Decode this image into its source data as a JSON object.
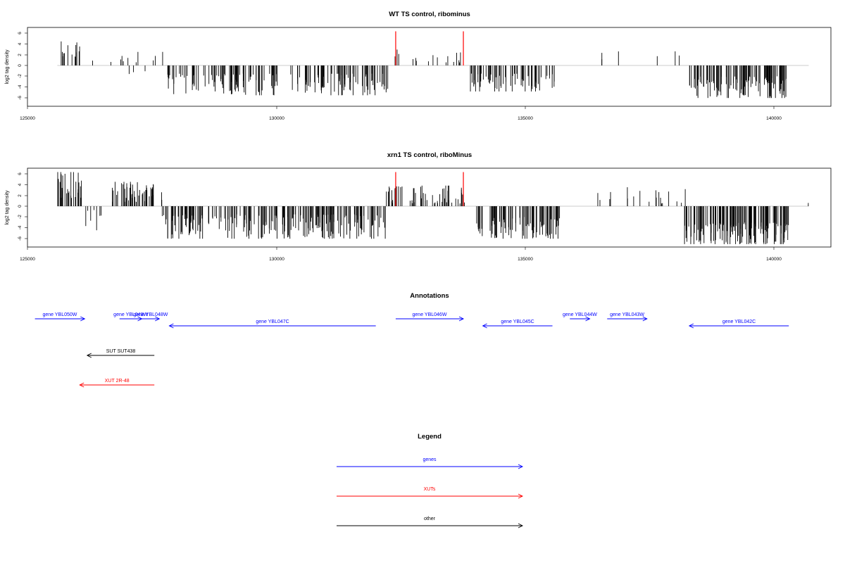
{
  "panels": [
    {
      "title": "WT TS control, ribominus",
      "ylabel": "log2 tag density",
      "xlim": [
        125000,
        141000
      ],
      "ylim": [
        -7,
        7
      ],
      "yticks": [
        "-6",
        "-4",
        "-2",
        "0",
        "2",
        "4",
        "6"
      ],
      "xticks": [
        "125000",
        "130000",
        "135000",
        "140000"
      ]
    },
    {
      "title": "xrn1 TS control, riboMinus",
      "ylabel": "log2 tag density",
      "xlim": [
        125000,
        141000
      ],
      "ylim": [
        -7,
        7
      ],
      "yticks": [
        "-6",
        "-4",
        "-2",
        "0",
        "2",
        "4",
        "6"
      ],
      "xticks": [
        "125000",
        "130000",
        "135000",
        "140000"
      ]
    }
  ],
  "annotations_title": "Annotations",
  "legend_title": "Legend",
  "colors": {
    "genes": "#0000ff",
    "XUTs": "#ff0000",
    "other": "#000000",
    "marker": "#ff0000",
    "baseline": "#bebebe"
  },
  "chart_data": [
    {
      "type": "bar",
      "title": "WT TS control, ribominus",
      "ylabel": "log2 tag density",
      "xlim": [
        125000,
        141000
      ],
      "ylim": [
        -7,
        7
      ],
      "baseline_range": [
        125600,
        140700
      ],
      "markers": [
        {
          "x": 132400,
          "y": 6.3
        },
        {
          "x": 133760,
          "y": 6.3
        }
      ],
      "regions": [
        {
          "x": [
            125600,
            126050
          ],
          "sign": 1,
          "min": 1.2,
          "max": 5.0,
          "density": 0.15
        },
        {
          "x": [
            126300,
            127800
          ],
          "sign": 1,
          "min": 0.5,
          "max": 2.5,
          "density": 0.035
        },
        {
          "x": [
            126600,
            127400
          ],
          "sign": -1,
          "min": 0.8,
          "max": 3.0,
          "density": 0.02
        },
        {
          "x": [
            127800,
            132250
          ],
          "sign": -1,
          "min": 1.5,
          "max": 5.5,
          "density": 0.2
        },
        {
          "x": [
            132250,
            133800
          ],
          "sign": 1,
          "min": 0.5,
          "max": 3.2,
          "density": 0.05
        },
        {
          "x": [
            133900,
            135700
          ],
          "sign": -1,
          "min": 1.5,
          "max": 4.8,
          "density": 0.2
        },
        {
          "x": [
            136400,
            138300
          ],
          "sign": 1,
          "min": 0.8,
          "max": 2.6,
          "density": 0.015
        },
        {
          "x": [
            138300,
            140300
          ],
          "sign": -1,
          "min": 2.0,
          "max": 6.0,
          "density": 0.28
        }
      ]
    },
    {
      "type": "bar",
      "title": "xrn1 TS control, riboMinus",
      "ylabel": "log2 tag density",
      "xlim": [
        125000,
        141000
      ],
      "ylim": [
        -7,
        7
      ],
      "baseline_range": [
        125600,
        140700
      ],
      "markers": [
        {
          "x": 132400,
          "y": 6.3
        },
        {
          "x": 133760,
          "y": 6.3
        }
      ],
      "regions": [
        {
          "x": [
            125600,
            126100
          ],
          "sign": 1,
          "min": 1.5,
          "max": 6.3,
          "density": 0.3
        },
        {
          "x": [
            126100,
            126700
          ],
          "sign": -1,
          "min": 0.5,
          "max": 4.5,
          "density": 0.06
        },
        {
          "x": [
            126700,
            127700
          ],
          "sign": 1,
          "min": 0.8,
          "max": 4.5,
          "density": 0.25
        },
        {
          "x": [
            127700,
            132200
          ],
          "sign": -1,
          "min": 1.5,
          "max": 6.0,
          "density": 0.25
        },
        {
          "x": [
            132200,
            133800
          ],
          "sign": 1,
          "min": 0.5,
          "max": 3.8,
          "density": 0.18
        },
        {
          "x": [
            133900,
            135700
          ],
          "sign": -1,
          "min": 2.0,
          "max": 6.0,
          "density": 0.25
        },
        {
          "x": [
            136400,
            138300
          ],
          "sign": 1,
          "min": 0.5,
          "max": 3.5,
          "density": 0.05
        },
        {
          "x": [
            138200,
            140300
          ],
          "sign": -1,
          "min": 3.0,
          "max": 7.0,
          "density": 0.35
        },
        {
          "x": [
            140600,
            140700
          ],
          "sign": 1,
          "min": 0.5,
          "max": 1.2,
          "density": 0.02
        }
      ]
    }
  ],
  "features": [
    {
      "label": "gene YBL050W",
      "start": 125150,
      "end": 126150,
      "strand": "+",
      "kind": "gene",
      "row": 0
    },
    {
      "label": "gene YBL049W",
      "start": 126850,
      "end": 127300,
      "strand": "+",
      "kind": "gene",
      "row": 0
    },
    {
      "label": "gene YBL048W",
      "start": 127300,
      "end": 127650,
      "strand": "+",
      "kind": "gene",
      "row": 0
    },
    {
      "label": "gene YBL047C",
      "start": 127850,
      "end": 132000,
      "strand": "-",
      "kind": "gene",
      "row": 1
    },
    {
      "label": "gene YBL046W",
      "start": 132400,
      "end": 133760,
      "strand": "+",
      "kind": "gene",
      "row": 0
    },
    {
      "label": "gene YBL045C",
      "start": 134150,
      "end": 135550,
      "strand": "-",
      "kind": "gene",
      "row": 1
    },
    {
      "label": "gene YBL044W",
      "start": 135900,
      "end": 136300,
      "strand": "+",
      "kind": "gene",
      "row": 0
    },
    {
      "label": "gene YBL043W",
      "start": 136650,
      "end": 137450,
      "strand": "+",
      "kind": "gene",
      "row": 0
    },
    {
      "label": "gene YBL042C",
      "start": 138300,
      "end": 140300,
      "strand": "-",
      "kind": "gene",
      "row": 1
    },
    {
      "label": "SUT SUT438",
      "start": 126200,
      "end": 127550,
      "strand": "-",
      "kind": "other",
      "row": 2
    },
    {
      "label": "XUT 2R-48",
      "start": 126050,
      "end": 127550,
      "strand": "-",
      "kind": "XUTs",
      "row": 3
    }
  ],
  "legend": [
    {
      "label": "genes",
      "kind": "genes"
    },
    {
      "label": "XUTs",
      "kind": "XUTs"
    },
    {
      "label": "other",
      "kind": "other"
    }
  ]
}
